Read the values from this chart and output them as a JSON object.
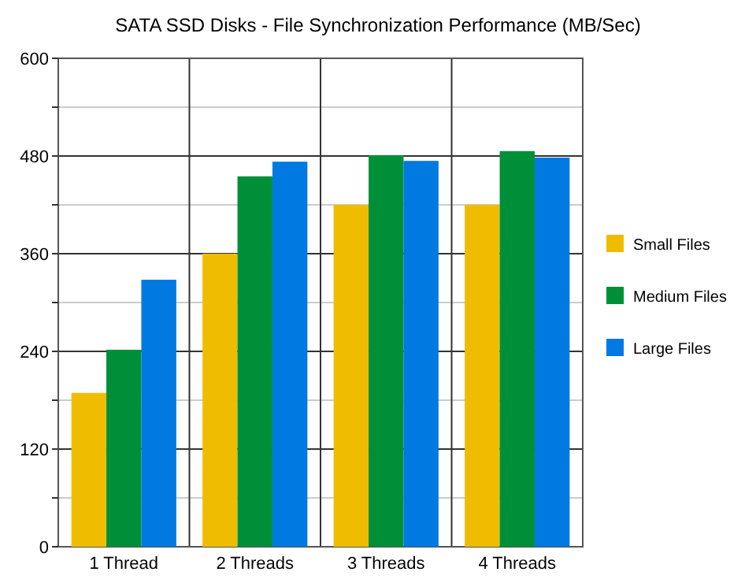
{
  "chart_data": {
    "type": "bar",
    "title": "SATA SSD Disks - File Synchronization Performance (MB/Sec)",
    "categories": [
      "1 Thread",
      "2 Threads",
      "3 Threads",
      "4 Threads"
    ],
    "series": [
      {
        "name": "Small Files",
        "color": "#f0bc00",
        "values": [
          189,
          360,
          420,
          420
        ]
      },
      {
        "name": "Medium Files",
        "color": "#008f39",
        "values": [
          242,
          455,
          481,
          486
        ]
      },
      {
        "name": "Large Files",
        "color": "#0079e0",
        "values": [
          328,
          473,
          474,
          478
        ]
      }
    ],
    "ylim": [
      0,
      600
    ],
    "yticks": [
      0,
      {
        "value": 60,
        "label": null
      },
      120,
      {
        "value": 180,
        "label": null
      },
      240,
      {
        "value": 300,
        "label": null
      },
      360,
      {
        "value": 420,
        "label": null
      },
      480,
      {
        "value": 540,
        "label": null
      },
      600
    ],
    "grid": true,
    "legend": "right"
  }
}
